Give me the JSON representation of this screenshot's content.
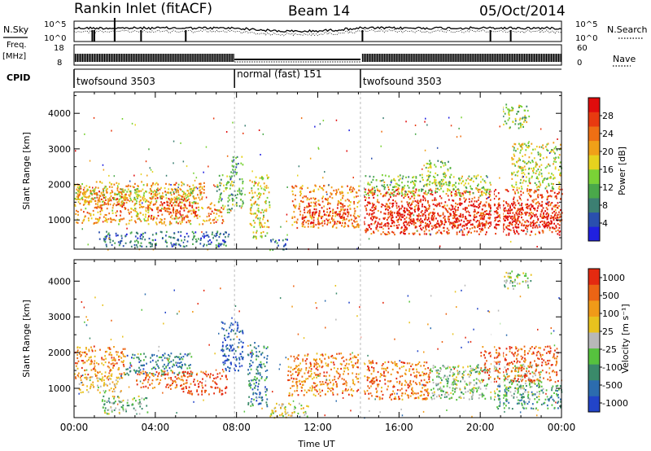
{
  "header": {
    "title": "Rankin Inlet (fitACF)",
    "beam": "Beam 14",
    "date": "05/Oct/2014"
  },
  "side_labels": {
    "nsky": "N.Sky",
    "freq": "Freq.",
    "freq_unit": "[MHz]",
    "cpid": "CPID",
    "nsearch": "N.Search",
    "nave": "Nave"
  },
  "colors": {
    "power": [
      "#2020e0",
      "#2a4fae",
      "#3c7f72",
      "#4aa84a",
      "#7ad236",
      "#e6d21e",
      "#f0a018",
      "#ee6f14",
      "#e83a10",
      "#e00c0c"
    ],
    "velocity": [
      "#2244c8",
      "#2c6cae",
      "#3a8a6a",
      "#56c23e",
      "#b8b8b8",
      "#e8c21e",
      "#f09a18",
      "#ec6414",
      "#e42a10"
    ]
  },
  "chart_data": [
    {
      "type": "line",
      "title": "N.Sky / N.Search",
      "ylim": [
        1,
        100000
      ],
      "y_scale": "log",
      "yticks_left": [
        "10^5",
        "10^0"
      ],
      "yticks_right": [
        "10^5",
        "10^0"
      ],
      "x_range_hours": [
        0,
        24
      ]
    },
    {
      "type": "line",
      "title": "Freq / Nave",
      "yticks_left": [
        "18",
        "8"
      ],
      "yticks_right": [
        "60",
        "0"
      ],
      "x_range_hours": [
        0,
        24
      ]
    },
    {
      "type": "table",
      "title": "CPID",
      "segments": [
        {
          "label": "twofsound 3503",
          "start_hour": 0,
          "end_hour": 7.9
        },
        {
          "label": "normal (fast) 151",
          "start_hour": 7.9,
          "end_hour": 14.1
        },
        {
          "label": "twofsound 3503",
          "start_hour": 14.1,
          "end_hour": 24
        }
      ]
    },
    {
      "type": "heatmap",
      "variable": "Power",
      "ylabel": "Slant Range [km]",
      "ylim": [
        180,
        4600
      ],
      "yticks": [
        "1000",
        "2000",
        "3000",
        "4000"
      ],
      "colorbar_label": "Power [dB]",
      "colorbar_ticks": [
        "4",
        "8",
        "12",
        "16",
        "20",
        "24",
        "28"
      ],
      "colorbar_range": [
        0,
        32
      ],
      "regions": [
        {
          "t0": 0.0,
          "t1": 6.4,
          "r0": 900,
          "r1": 2100,
          "level": 0.65
        },
        {
          "t0": 0.0,
          "t1": 6.0,
          "r0": 1500,
          "r1": 1900,
          "level": 0.5
        },
        {
          "t0": 3.6,
          "t1": 6.0,
          "r0": 1050,
          "r1": 1650,
          "level": 0.85
        },
        {
          "t0": 1.0,
          "t1": 2.6,
          "r0": 1350,
          "r1": 1850,
          "level": 0.8
        },
        {
          "t0": 1.2,
          "t1": 7.6,
          "r0": 260,
          "r1": 700,
          "level": 0.22
        },
        {
          "t0": 6.5,
          "t1": 7.4,
          "r0": 900,
          "r1": 1500,
          "level": 0.75
        },
        {
          "t0": 7.0,
          "t1": 7.8,
          "r0": 1300,
          "r1": 2300,
          "level": 0.4
        },
        {
          "t0": 7.7,
          "t1": 8.3,
          "r0": 1400,
          "r1": 2800,
          "level": 0.35
        },
        {
          "t0": 8.6,
          "t1": 9.6,
          "r0": 500,
          "r1": 2300,
          "level": 0.55
        },
        {
          "t0": 9.6,
          "t1": 10.5,
          "r0": 180,
          "r1": 500,
          "level": 0.25
        },
        {
          "t0": 10.7,
          "t1": 14.0,
          "r0": 800,
          "r1": 2000,
          "level": 0.7
        },
        {
          "t0": 11.2,
          "t1": 13.5,
          "r0": 900,
          "r1": 1500,
          "level": 0.9
        },
        {
          "t0": 14.2,
          "t1": 24.0,
          "r0": 600,
          "r1": 1900,
          "level": 0.85
        },
        {
          "t0": 14.5,
          "t1": 23.8,
          "r0": 800,
          "r1": 1500,
          "level": 0.95
        },
        {
          "t0": 14.2,
          "t1": 20.5,
          "r0": 1700,
          "r1": 2300,
          "level": 0.45
        },
        {
          "t0": 21.5,
          "t1": 24.0,
          "r0": 1900,
          "r1": 3200,
          "level": 0.5
        },
        {
          "t0": 21.0,
          "t1": 22.4,
          "r0": 3600,
          "r1": 4300,
          "level": 0.45
        },
        {
          "t0": 17.3,
          "t1": 18.5,
          "r0": 2000,
          "r1": 2700,
          "level": 0.45
        }
      ]
    },
    {
      "type": "heatmap",
      "variable": "Velocity",
      "ylabel": "Slant Range [km]",
      "ylim": [
        180,
        4600
      ],
      "yticks": [
        "1000",
        "2000",
        "3000",
        "4000"
      ],
      "xlabel": "Time UT",
      "xticks": [
        "00:00",
        "04:00",
        "08:00",
        "12:00",
        "16:00",
        "20:00",
        "00:00"
      ],
      "x_range_hours": [
        0,
        24
      ],
      "colorbar_label": "Velocity [m s⁻¹]",
      "colorbar_ticks": [
        "1000",
        "500",
        "100",
        "25",
        "-25",
        "-100",
        "-500",
        "-1000"
      ],
      "regions": [
        {
          "t0": 0.0,
          "t1": 2.5,
          "r0": 1300,
          "r1": 2200,
          "level": 0.75
        },
        {
          "t0": 0.2,
          "t1": 2.3,
          "r0": 900,
          "r1": 1400,
          "level": 0.6
        },
        {
          "t0": 2.5,
          "t1": 5.8,
          "r0": 1400,
          "r1": 2000,
          "level": 0.25
        },
        {
          "t0": 3.0,
          "t1": 5.5,
          "r0": 1000,
          "r1": 1500,
          "level": 0.85
        },
        {
          "t0": 1.3,
          "t1": 3.6,
          "r0": 300,
          "r1": 800,
          "level": 0.42
        },
        {
          "t0": 5.3,
          "t1": 7.5,
          "r0": 850,
          "r1": 1500,
          "level": 0.9
        },
        {
          "t0": 7.2,
          "t1": 8.3,
          "r0": 1500,
          "r1": 2900,
          "level": 0.1
        },
        {
          "t0": 8.5,
          "t1": 9.5,
          "r0": 500,
          "r1": 2300,
          "level": 0.22
        },
        {
          "t0": 9.6,
          "t1": 11.5,
          "r0": 180,
          "r1": 600,
          "level": 0.55
        },
        {
          "t0": 10.5,
          "t1": 14.0,
          "r0": 800,
          "r1": 2000,
          "level": 0.78
        },
        {
          "t0": 14.2,
          "t1": 17.5,
          "r0": 700,
          "r1": 1800,
          "level": 0.82
        },
        {
          "t0": 17.5,
          "t1": 23.0,
          "r0": 700,
          "r1": 1700,
          "level": 0.44
        },
        {
          "t0": 20.0,
          "t1": 23.8,
          "r0": 1200,
          "r1": 2200,
          "level": 0.85
        },
        {
          "t0": 20.8,
          "t1": 24.0,
          "r0": 450,
          "r1": 1100,
          "level": 0.3
        },
        {
          "t0": 21.0,
          "t1": 22.5,
          "r0": 3800,
          "r1": 4300,
          "level": 0.44
        }
      ]
    }
  ]
}
